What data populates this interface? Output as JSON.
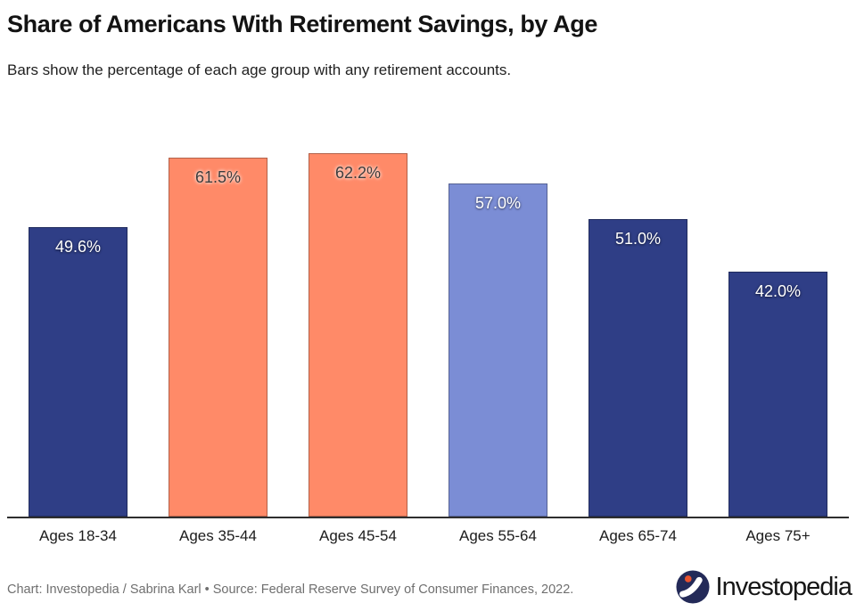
{
  "header": {
    "title": "Share of Americans With Retirement Savings, by Age",
    "subtitle": "Bars show the percentage of each age group with any retirement accounts."
  },
  "chart_data": {
    "type": "bar",
    "title": "Share of Americans With Retirement Savings, by Age",
    "subtitle": "Bars show the percentage of each age group with any retirement accounts.",
    "categories": [
      "Ages 18-34",
      "Ages 35-44",
      "Ages 45-54",
      "Ages 55-64",
      "Ages 65-74",
      "Ages 75+"
    ],
    "values": [
      49.6,
      61.5,
      62.2,
      57.0,
      51.0,
      42.0
    ],
    "value_labels": [
      "49.6%",
      "61.5%",
      "62.2%",
      "57.0%",
      "51.0%",
      "42.0%"
    ],
    "bar_colors": [
      "#2f3e86",
      "#ff8a68",
      "#ff8a68",
      "#7b8dd5",
      "#2f3e86",
      "#2f3e86"
    ],
    "label_text_colors": [
      "#ffffff",
      "#3d3d3d",
      "#3d3d3d",
      "#ffffff",
      "#ffffff",
      "#ffffff"
    ],
    "unit": "%",
    "ylim": [
      0,
      62.2
    ],
    "grid": false,
    "legend": false,
    "xlabel": "",
    "ylabel": ""
  },
  "footer": {
    "credit": "Chart: Investopedia / Sabrina Karl • Source: Federal Reserve Survey of Consumer Finances, 2022.",
    "logo_text": "Investopedia"
  },
  "colors": {
    "navy": "#2f3e86",
    "coral": "#ff8a68",
    "periwinkle": "#7b8dd5",
    "axis_line": "#2e2e2e",
    "credit_text": "#6f6f6f",
    "logo_circle": "#232a58",
    "logo_dot": "#e8522f"
  }
}
